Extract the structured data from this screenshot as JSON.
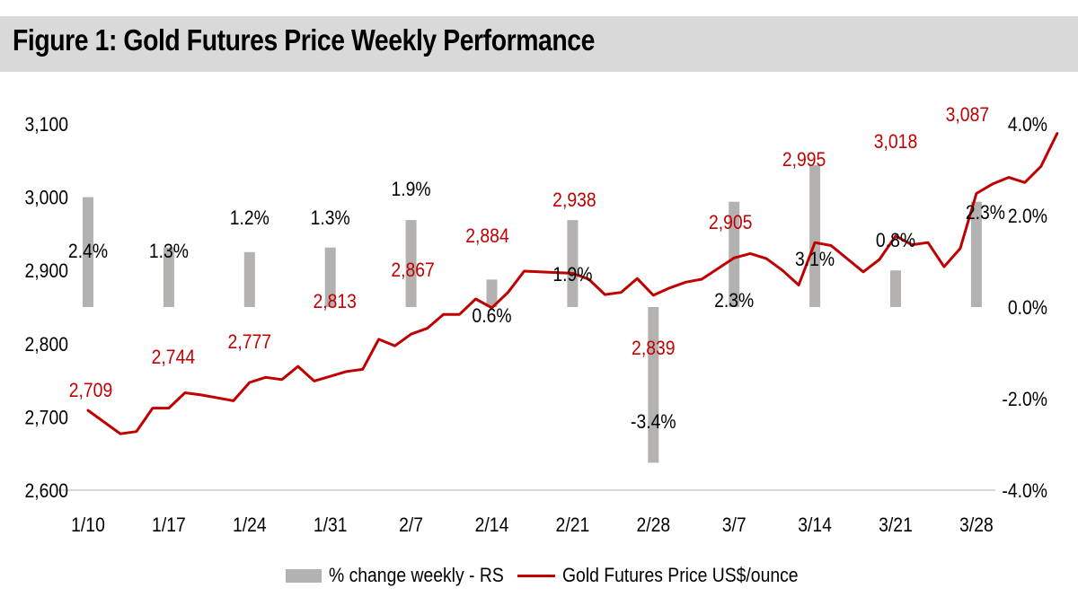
{
  "figure": {
    "title": "Figure 1: Gold Futures Price Weekly Performance"
  },
  "legend": {
    "bar_label": "% change weekly - RS",
    "line_label": "Gold Futures Price US$/ounce"
  },
  "colors": {
    "bar": "#b4b2b1",
    "line": "#c00000",
    "title_bg": "#d9d9d9",
    "axis": "#d9d9d9"
  },
  "chart_data": {
    "type": "bar+line",
    "title": "Figure 1: Gold Futures Price Weekly Performance",
    "x_tick_labels": [
      "1/10",
      "1/17",
      "1/24",
      "1/31",
      "2/7",
      "2/14",
      "2/21",
      "2/28",
      "3/7",
      "3/14",
      "3/21",
      "3/28"
    ],
    "left_axis": {
      "label": "Gold Futures Price US$/ounce",
      "range": [
        2600,
        3100
      ],
      "ticks": [
        2600,
        2700,
        2800,
        2900,
        3000,
        3100
      ],
      "tick_labels": [
        "2,600",
        "2,700",
        "2,800",
        "2,900",
        "3,000",
        "3,100"
      ]
    },
    "right_axis": {
      "label": "% change weekly - RS",
      "range": [
        -4.0,
        4.0
      ],
      "ticks": [
        -4.0,
        -2.0,
        0.0,
        2.0,
        4.0
      ],
      "tick_labels": [
        "-4.0%",
        "-2.0%",
        "0.0%",
        "2.0%",
        "4.0%"
      ]
    },
    "bar_series": {
      "name": "% change weekly - RS",
      "weeks": [
        "1/10",
        "1/17",
        "1/24",
        "1/31",
        "2/7",
        "2/14",
        "2/21",
        "2/28",
        "3/7",
        "3/14",
        "3/21",
        "3/28"
      ],
      "values": [
        2.4,
        1.3,
        1.2,
        1.3,
        1.9,
        0.6,
        1.9,
        -3.4,
        2.3,
        3.1,
        0.8,
        2.3
      ],
      "labels": [
        "2.4%",
        "1.3%",
        "1.2%",
        "1.3%",
        "1.9%",
        "0.6%",
        "1.9%",
        "-3.4%",
        "2.3%",
        "3.1%",
        "0.8%",
        "2.3%"
      ]
    },
    "line_series": {
      "name": "Gold Futures Price US$/ounce",
      "x_index": [
        0,
        0.4,
        0.6,
        0.8,
        1.0,
        1.2,
        1.4,
        1.8,
        2.0,
        2.2,
        2.4,
        2.6,
        2.8,
        3.2,
        3.4,
        3.6,
        3.8,
        4.0,
        4.2,
        4.4,
        4.6,
        4.8,
        5.0,
        5.2,
        5.4,
        5.8,
        6.0,
        6.2,
        6.4,
        6.6,
        6.8,
        7.0,
        7.2,
        7.4,
        7.6,
        8.0,
        8.2,
        8.4,
        8.6,
        8.8,
        9.0,
        9.2,
        9.6,
        9.8,
        10.0,
        10.2,
        10.4,
        10.6,
        10.8,
        11.0,
        11.2,
        11.4,
        11.6,
        11.8,
        12.0
      ],
      "values": [
        2709,
        2677,
        2680,
        2712,
        2712,
        2733,
        2730,
        2722,
        2747,
        2754,
        2751,
        2769,
        2749,
        2762,
        2765,
        2806,
        2797,
        2813,
        2821,
        2840,
        2840,
        2861,
        2849,
        2870,
        2899,
        2897,
        2896,
        2888,
        2867,
        2870,
        2889,
        2866,
        2876,
        2884,
        2888,
        2917,
        2923,
        2916,
        2900,
        2880,
        2938,
        2934,
        2898,
        2915,
        2947,
        2935,
        2938,
        2905,
        2930,
        3005,
        3018,
        3027,
        3020,
        3042,
        3087
      ]
    },
    "line_labels": [
      {
        "text": "2,709",
        "x_index": 0
      },
      {
        "text": "2,744",
        "x_index": 1
      },
      {
        "text": "2,777",
        "x_index": 2
      },
      {
        "text": "2,813",
        "x_index": 3
      },
      {
        "text": "2,867",
        "x_index": 4
      },
      {
        "text": "2,884",
        "x_index": 5
      },
      {
        "text": "2,938",
        "x_index": 6
      },
      {
        "text": "2,839",
        "x_index": 7
      },
      {
        "text": "2,905",
        "x_index": 8
      },
      {
        "text": "2,995",
        "x_index": 9
      },
      {
        "text": "3,018",
        "x_index": 10
      },
      {
        "text": "3,087",
        "x_index": 11
      }
    ]
  }
}
